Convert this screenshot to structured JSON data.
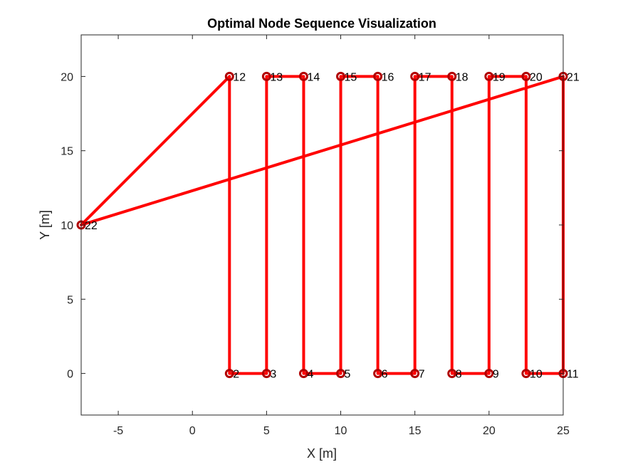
{
  "chart_data": {
    "type": "line",
    "title": "Optimal Node Sequence Visualization",
    "xlabel": "X [m]",
    "ylabel": "Y [m]",
    "xlim": [
      -7.5,
      25
    ],
    "ylim": [
      -2.8,
      22.8
    ],
    "xticks": [
      -5,
      0,
      5,
      10,
      15,
      20,
      25
    ],
    "yticks": [
      0,
      5,
      10,
      15,
      20
    ],
    "grid": false,
    "line_color": "#ff0000",
    "marker_color": "#b00000",
    "nodes": [
      {
        "label": "2",
        "x": 2.5,
        "y": 0
      },
      {
        "label": "3",
        "x": 5,
        "y": 0
      },
      {
        "label": "4",
        "x": 7.5,
        "y": 0
      },
      {
        "label": "5",
        "x": 10,
        "y": 0
      },
      {
        "label": "6",
        "x": 12.5,
        "y": 0
      },
      {
        "label": "7",
        "x": 15,
        "y": 0
      },
      {
        "label": "8",
        "x": 17.5,
        "y": 0
      },
      {
        "label": "9",
        "x": 20,
        "y": 0
      },
      {
        "label": "10",
        "x": 22.5,
        "y": 0
      },
      {
        "label": "11",
        "x": 25,
        "y": 0
      },
      {
        "label": "12",
        "x": 2.5,
        "y": 20
      },
      {
        "label": "13",
        "x": 5,
        "y": 20
      },
      {
        "label": "14",
        "x": 7.5,
        "y": 20
      },
      {
        "label": "15",
        "x": 10,
        "y": 20
      },
      {
        "label": "16",
        "x": 12.5,
        "y": 20
      },
      {
        "label": "17",
        "x": 15,
        "y": 20
      },
      {
        "label": "18",
        "x": 17.5,
        "y": 20
      },
      {
        "label": "19",
        "x": 20,
        "y": 20
      },
      {
        "label": "20",
        "x": 22.5,
        "y": 20
      },
      {
        "label": "21",
        "x": 25,
        "y": 20
      },
      {
        "label": "22",
        "x": -7.5,
        "y": 10
      }
    ],
    "path": [
      [
        -7.5,
        10
      ],
      [
        2.5,
        20
      ],
      [
        2.5,
        0
      ],
      [
        5,
        0
      ],
      [
        5,
        20
      ],
      [
        7.5,
        20
      ],
      [
        7.5,
        0
      ],
      [
        10,
        0
      ],
      [
        10,
        20
      ],
      [
        12.5,
        20
      ],
      [
        12.5,
        0
      ],
      [
        15,
        0
      ],
      [
        15,
        20
      ],
      [
        17.5,
        20
      ],
      [
        17.5,
        0
      ],
      [
        20,
        0
      ],
      [
        20,
        20
      ],
      [
        22.5,
        20
      ],
      [
        22.5,
        0
      ],
      [
        25,
        0
      ],
      [
        25,
        20
      ],
      [
        -7.5,
        10
      ]
    ]
  }
}
